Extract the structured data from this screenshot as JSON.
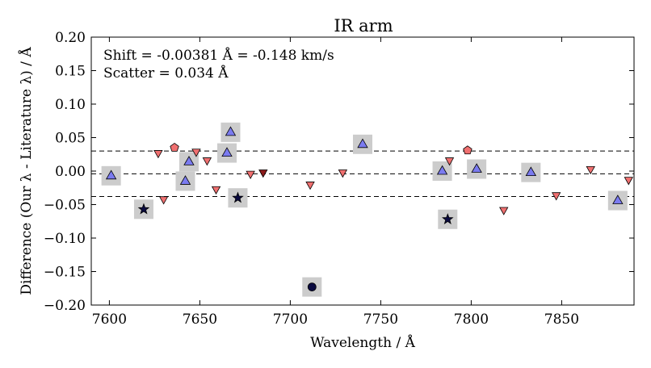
{
  "chart_data": {
    "type": "scatter",
    "title": "IR arm",
    "xlabel": "Wavelength / Å",
    "ylabel": "Difference (Our λ - Literature λ) / Å",
    "xlim": [
      7590,
      7890
    ],
    "ylim": [
      -0.2,
      0.2
    ],
    "x_ticks": [
      7600,
      7650,
      7700,
      7750,
      7800,
      7850
    ],
    "y_ticks": [
      -0.2,
      -0.15,
      -0.1,
      -0.05,
      0.0,
      0.05,
      0.1,
      0.15,
      0.2
    ],
    "x_tick_labels": [
      "7600",
      "7650",
      "7700",
      "7750",
      "7800",
      "7850"
    ],
    "y_tick_labels": [
      "−0.20",
      "−0.15",
      "−0.10",
      "−0.05",
      "0.00",
      "0.05",
      "0.10",
      "0.15",
      "0.20"
    ],
    "annotations": [
      "Shift = -0.00381 Å = -0.148 km/s",
      "Scatter = 0.034 Å"
    ],
    "reference_lines": [
      {
        "name": "upper",
        "y": 0.03
      },
      {
        "name": "shift",
        "y": -0.004
      },
      {
        "name": "lower",
        "y": -0.038
      }
    ],
    "colors": {
      "triangle_up": "#7b7bf0",
      "triangle_down": "#f07070",
      "triangle_down_dark": "#8b1a1a",
      "pentagon": "#f07070",
      "star": "#0a0a40",
      "circle": "#0a0a40",
      "highlight": "#cccccc",
      "edge": "#000000"
    },
    "series": [
      {
        "name": "triangle-up",
        "marker": "triangle-up",
        "points": [
          {
            "x": 7601,
            "y": -0.007,
            "highlight": true
          },
          {
            "x": 7642,
            "y": -0.015,
            "highlight": true
          },
          {
            "x": 7644,
            "y": 0.014,
            "highlight": true
          },
          {
            "x": 7665,
            "y": 0.027,
            "highlight": true
          },
          {
            "x": 7667,
            "y": 0.058,
            "highlight": true
          },
          {
            "x": 7740,
            "y": 0.04,
            "highlight": true
          },
          {
            "x": 7784,
            "y": 0.0,
            "highlight": true
          },
          {
            "x": 7803,
            "y": 0.003,
            "highlight": true
          },
          {
            "x": 7833,
            "y": -0.002,
            "highlight": true
          },
          {
            "x": 7881,
            "y": -0.044,
            "highlight": true
          }
        ]
      },
      {
        "name": "triangle-down",
        "marker": "triangle-down",
        "points": [
          {
            "x": 7627,
            "y": 0.026
          },
          {
            "x": 7630,
            "y": -0.043
          },
          {
            "x": 7648,
            "y": 0.028
          },
          {
            "x": 7654,
            "y": 0.015
          },
          {
            "x": 7659,
            "y": -0.028
          },
          {
            "x": 7678,
            "y": -0.005
          },
          {
            "x": 7711,
            "y": -0.021
          },
          {
            "x": 7729,
            "y": -0.003
          },
          {
            "x": 7788,
            "y": 0.015
          },
          {
            "x": 7818,
            "y": -0.059
          },
          {
            "x": 7847,
            "y": -0.037
          },
          {
            "x": 7866,
            "y": 0.002
          },
          {
            "x": 7887,
            "y": -0.014
          }
        ]
      },
      {
        "name": "triangle-down-dark",
        "marker": "triangle-down",
        "points": [
          {
            "x": 7685,
            "y": -0.003
          }
        ]
      },
      {
        "name": "pentagon",
        "marker": "pentagon",
        "points": [
          {
            "x": 7636,
            "y": 0.035
          },
          {
            "x": 7798,
            "y": 0.031
          }
        ]
      },
      {
        "name": "star",
        "marker": "star",
        "points": [
          {
            "x": 7619,
            "y": -0.057,
            "highlight": true
          },
          {
            "x": 7671,
            "y": -0.04,
            "highlight": true
          },
          {
            "x": 7787,
            "y": -0.072,
            "highlight": true
          }
        ]
      },
      {
        "name": "circle",
        "marker": "circle",
        "points": [
          {
            "x": 7712,
            "y": -0.173,
            "highlight": true
          }
        ]
      }
    ]
  }
}
